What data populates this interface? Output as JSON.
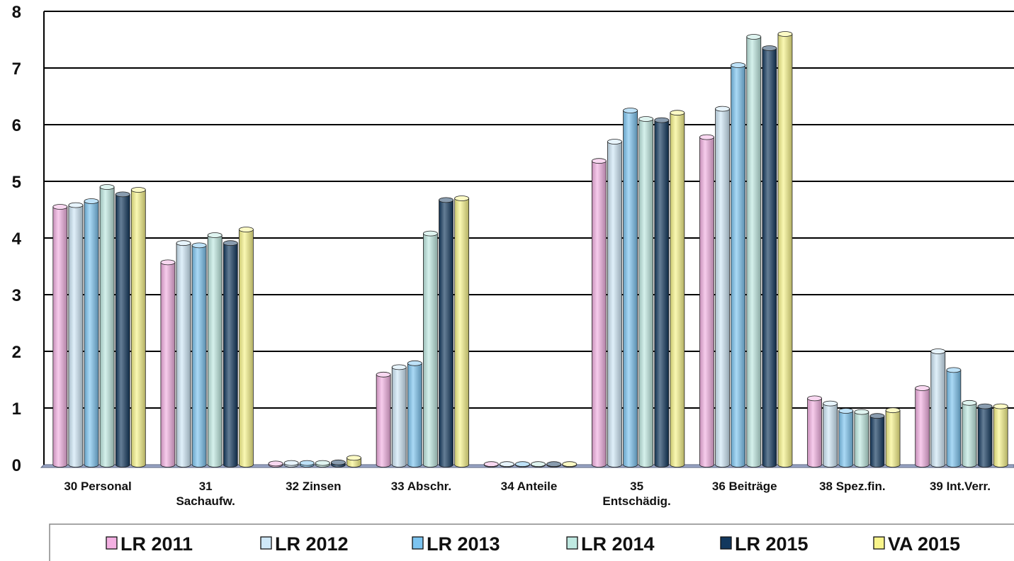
{
  "chart_data": {
    "type": "bar",
    "title": "",
    "xlabel": "",
    "ylabel": "",
    "ylim": [
      0,
      8
    ],
    "yticks": [
      0,
      1,
      2,
      3,
      4,
      5,
      6,
      7,
      8
    ],
    "grid": true,
    "legend_position": "bottom",
    "categories": [
      [
        "30 Personal"
      ],
      [
        "31",
        "Sachaufw."
      ],
      [
        "32 Zinsen"
      ],
      [
        "33 Abschr."
      ],
      [
        "34 Anteile"
      ],
      [
        "35",
        "Entschädig."
      ],
      [
        "36 Beiträge"
      ],
      [
        "38 Spez.fin."
      ],
      [
        "39 Int.Verr."
      ]
    ],
    "series": [
      {
        "name": "LR 2011",
        "color": "#f3b0e2",
        "values": [
          4.55,
          3.57,
          0.02,
          1.59,
          0.01,
          5.36,
          5.78,
          1.17,
          1.35
        ]
      },
      {
        "name": "LR 2012",
        "color": "#cfe8f8",
        "values": [
          4.58,
          3.91,
          0.03,
          1.72,
          0.01,
          5.7,
          6.28,
          1.08,
          2.0
        ]
      },
      {
        "name": "LR 2013",
        "color": "#7cc4f0",
        "values": [
          4.65,
          3.87,
          0.03,
          1.79,
          0.01,
          6.25,
          7.05,
          0.95,
          1.67
        ]
      },
      {
        "name": "LR 2014",
        "color": "#bfe9e1",
        "values": [
          4.9,
          4.05,
          0.03,
          4.08,
          0.01,
          6.1,
          7.55,
          0.93,
          1.09
        ]
      },
      {
        "name": "LR 2015",
        "color": "#12385e",
        "values": [
          4.77,
          3.91,
          0.04,
          4.67,
          0.01,
          6.08,
          7.35,
          0.86,
          1.03
        ]
      },
      {
        "name": "VA 2015",
        "color": "#f8f48a",
        "values": [
          4.85,
          4.15,
          0.12,
          4.7,
          0.01,
          6.21,
          7.6,
          0.96,
          1.03
        ]
      }
    ]
  }
}
